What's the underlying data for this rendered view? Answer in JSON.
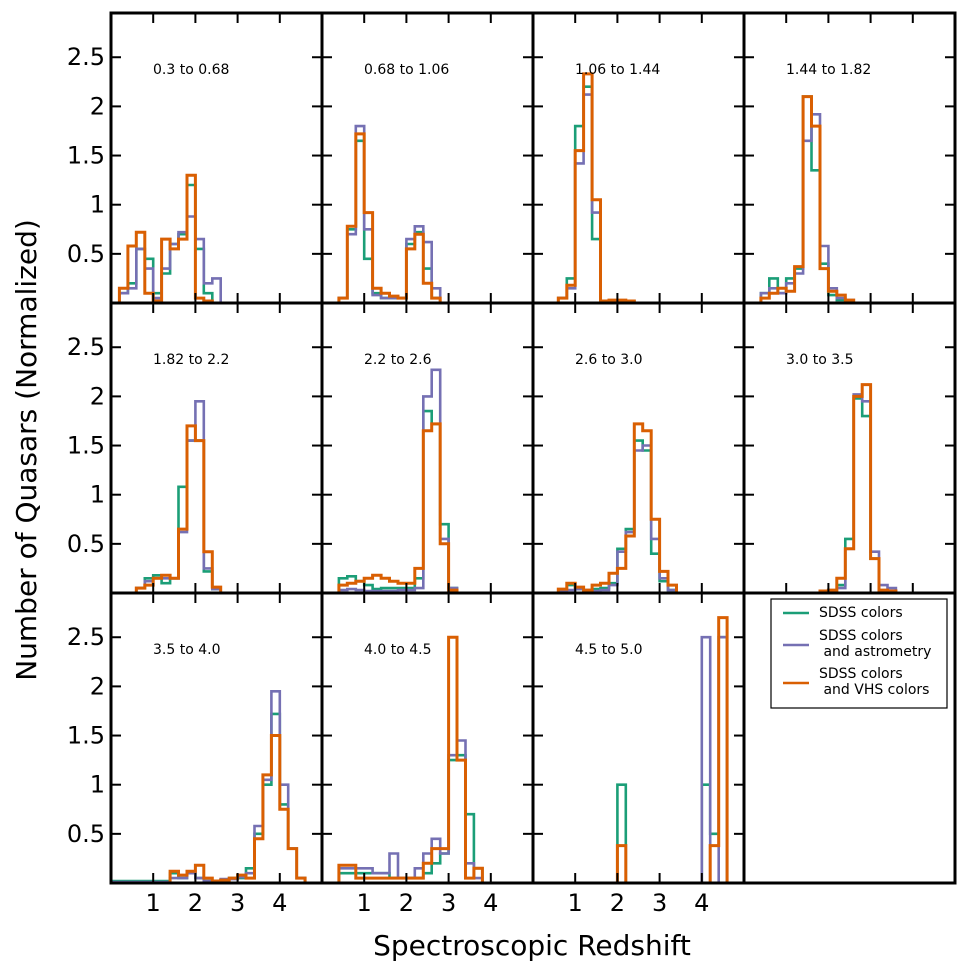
{
  "chart_data": {
    "type": "step-histogram-grid",
    "xlabel": "Spectroscopic Redshift",
    "ylabel": "Number of Quasars (Normalized)",
    "xlim": [
      0,
      5
    ],
    "ylim": [
      0,
      2.95
    ],
    "x_ticks": [
      1,
      2,
      3,
      4
    ],
    "x_tick_labels": [
      "1",
      "2",
      "3",
      "4"
    ],
    "y_ticks": [
      0.5,
      1,
      1.5,
      2,
      2.5
    ],
    "y_tick_labels": [
      "0.5",
      "1",
      "1.5",
      "2",
      "2.5"
    ],
    "series_colors": [
      "#1b9e77",
      "#7570b3",
      "#d95f02"
    ],
    "legend": {
      "placement": "bottom-right panel",
      "entries": [
        {
          "line1": "SDSS colors",
          "line2": ""
        },
        {
          "line1": "SDSS colors",
          "line2": " and astrometry"
        },
        {
          "line1": "SDSS colors",
          "line2": " and VHS colors"
        }
      ]
    },
    "panels": [
      {
        "label": "0.3  to 0.68",
        "series": [
          {
            "start": 0.2,
            "width": 0.2,
            "values": [
              0.1,
              0.2,
              0.55,
              0.45,
              0.1,
              0.3,
              0.6,
              0.7,
              1.2,
              0.55,
              0.1
            ]
          },
          {
            "start": 0.2,
            "width": 0.2,
            "values": [
              0.1,
              0.15,
              0.55,
              0.35,
              0.05,
              0.35,
              0.6,
              0.72,
              0.88,
              0.65,
              0.2,
              0.25
            ]
          },
          {
            "start": 0.2,
            "width": 0.2,
            "values": [
              0.15,
              0.58,
              0.72,
              0.1,
              0.02,
              0.65,
              0.55,
              0.65,
              1.3,
              0.05,
              0.02
            ]
          }
        ]
      },
      {
        "label": "0.68  to 1.06",
        "series": [
          {
            "start": 0.4,
            "width": 0.2,
            "values": [
              0.05,
              0.75,
              1.65,
              0.45,
              0.1,
              0.05,
              0.05,
              0.05,
              0.6,
              0.72,
              0.35,
              0.05
            ]
          },
          {
            "start": 0.4,
            "width": 0.2,
            "values": [
              0.05,
              0.7,
              1.8,
              0.75,
              0.08,
              0.05,
              0.05,
              0.05,
              0.65,
              0.78,
              0.62,
              0.15
            ]
          },
          {
            "start": 0.4,
            "width": 0.2,
            "values": [
              0.05,
              0.78,
              1.72,
              0.92,
              0.15,
              0.1,
              0.07,
              0.05,
              0.55,
              0.7,
              0.2,
              0.05
            ]
          }
        ]
      },
      {
        "label": "1.06  to 1.44",
        "series": [
          {
            "start": 0.6,
            "width": 0.2,
            "values": [
              0.05,
              0.25,
              1.8,
              2.2,
              0.65,
              0.02,
              0.02,
              0.02,
              0.02
            ]
          },
          {
            "start": 0.6,
            "width": 0.2,
            "values": [
              0.05,
              0.15,
              1.42,
              2.12,
              0.92,
              0.02,
              0.02,
              0.02,
              0.02
            ]
          },
          {
            "start": 0.6,
            "width": 0.2,
            "values": [
              0.05,
              0.18,
              1.55,
              2.33,
              1.05,
              0.02,
              0.03,
              0.03,
              0.02
            ]
          }
        ]
      },
      {
        "label": "1.44  to 1.82",
        "series": [
          {
            "start": 0.4,
            "width": 0.2,
            "values": [
              0.1,
              0.25,
              0.1,
              0.25,
              0.35,
              2.1,
              1.35,
              0.4,
              0.08,
              0.03,
              0.02
            ]
          },
          {
            "start": 0.4,
            "width": 0.2,
            "values": [
              0.1,
              0.15,
              0.1,
              0.2,
              0.3,
              1.65,
              1.92,
              0.58,
              0.15,
              0.05,
              0.03
            ]
          },
          {
            "start": 0.4,
            "width": 0.2,
            "values": [
              0.05,
              0.1,
              0.15,
              0.12,
              0.37,
              2.1,
              1.8,
              0.35,
              0.12,
              0.08,
              0.03
            ]
          }
        ]
      },
      {
        "label": "1.82  to 2.2",
        "series": [
          {
            "start": 0.6,
            "width": 0.2,
            "values": [
              0.05,
              0.15,
              0.18,
              0.1,
              0.15,
              1.08,
              1.55,
              1.55,
              0.22,
              0.04
            ]
          },
          {
            "start": 0.6,
            "width": 0.2,
            "values": [
              0.05,
              0.12,
              0.15,
              0.15,
              0.15,
              0.62,
              1.55,
              1.95,
              0.25,
              0.04
            ]
          },
          {
            "start": 0.6,
            "width": 0.2,
            "values": [
              0.05,
              0.08,
              0.15,
              0.18,
              0.15,
              0.65,
              1.7,
              1.55,
              0.42,
              0.06
            ]
          }
        ]
      },
      {
        "label": "2.2  to 2.6",
        "series": [
          {
            "start": 0.4,
            "width": 0.2,
            "values": [
              0.15,
              0.17,
              0.12,
              0.08,
              0.04,
              0.05,
              0.05,
              0.05,
              0.05,
              0.15,
              1.85,
              1.72,
              0.7,
              0.05
            ]
          },
          {
            "start": 0.4,
            "width": 0.2,
            "values": [
              0.03,
              0.04,
              0.03,
              0.02,
              0.02,
              0.02,
              0.02,
              0.03,
              0.03,
              0.05,
              2.0,
              2.27,
              0.55,
              0.05
            ]
          },
          {
            "start": 0.4,
            "width": 0.2,
            "values": [
              0.08,
              0.1,
              0.12,
              0.15,
              0.18,
              0.15,
              0.12,
              0.1,
              0.1,
              0.25,
              1.65,
              1.72,
              0.5,
              0.03
            ]
          }
        ]
      },
      {
        "label": "2.6  to 3.0",
        "series": [
          {
            "start": 0.6,
            "width": 0.2,
            "values": [
              0.03,
              0.08,
              0.04,
              0.02,
              0.04,
              0.05,
              0.1,
              0.45,
              0.65,
              1.55,
              1.45,
              0.4,
              0.12,
              0.03
            ]
          },
          {
            "start": 0.6,
            "width": 0.2,
            "values": [
              0.02,
              0.03,
              0.04,
              0.03,
              0.02,
              0.03,
              0.08,
              0.42,
              0.62,
              1.45,
              1.5,
              0.55,
              0.15,
              0.03
            ]
          },
          {
            "start": 0.6,
            "width": 0.2,
            "values": [
              0.04,
              0.1,
              0.06,
              0.03,
              0.08,
              0.1,
              0.2,
              0.25,
              0.58,
              1.72,
              1.65,
              0.75,
              0.22,
              0.08
            ]
          }
        ]
      },
      {
        "label": "3.0  to 3.5",
        "series": [
          {
            "start": 1.8,
            "width": 0.2,
            "values": [
              0.02,
              0.02,
              0.08,
              0.55,
              1.98,
              1.8,
              0.35,
              0.02,
              0.02
            ]
          },
          {
            "start": 1.8,
            "width": 0.2,
            "values": [
              0.02,
              0.02,
              0.05,
              0.45,
              2.02,
              1.95,
              0.42,
              0.08,
              0.05
            ]
          },
          {
            "start": 1.8,
            "width": 0.2,
            "values": [
              0.02,
              0.03,
              0.15,
              0.45,
              2.0,
              2.12,
              0.35,
              0.03,
              0.02
            ]
          }
        ]
      },
      {
        "label": "3.5  to 4.0",
        "series": [
          {
            "start": 0.0,
            "width": 0.2,
            "values": [
              0.02,
              0.02,
              0.02,
              0.02,
              0.02,
              0.02,
              0.02,
              0.1,
              0.05,
              0.1,
              0.05,
              0.02,
              0.02,
              0.03,
              0.05,
              0.05,
              0.15,
              0.5,
              1.0,
              1.72,
              0.8,
              0.35,
              0.05
            ]
          },
          {
            "start": 0.0,
            "width": 0.2,
            "values": [
              0.01,
              0.01,
              0.01,
              0.01,
              0.01,
              0.01,
              0.01,
              0.05,
              0.05,
              0.1,
              0.05,
              0.02,
              0.02,
              0.04,
              0.04,
              0.06,
              0.1,
              0.58,
              1.05,
              1.95,
              1.0,
              0.35,
              0.05
            ]
          },
          {
            "start": 0.0,
            "width": 0.2,
            "values": [
              0.0,
              0.0,
              0.0,
              0.0,
              0.0,
              0.0,
              0.0,
              0.12,
              0.08,
              0.12,
              0.18,
              0.05,
              0.02,
              0.03,
              0.05,
              0.08,
              0.05,
              0.45,
              1.1,
              1.5,
              0.75,
              0.35,
              0.05
            ]
          }
        ]
      },
      {
        "label": "4.0  to 4.5",
        "series": [
          {
            "start": 0.4,
            "width": 0.2,
            "values": [
              0.1,
              0.1,
              0.1,
              0.1,
              0.1,
              0.1,
              0.05,
              0.05,
              0.05,
              0.05,
              0.1,
              0.2,
              0.3,
              1.25,
              1.3,
              0.7,
              0.15
            ]
          },
          {
            "start": 0.4,
            "width": 0.2,
            "values": [
              0.15,
              0.15,
              0.15,
              0.15,
              0.1,
              0.1,
              0.3,
              0.05,
              0.05,
              0.15,
              0.3,
              0.45,
              0.3,
              1.3,
              1.45,
              0.2,
              0.05
            ]
          },
          {
            "start": 0.4,
            "width": 0.2,
            "values": [
              0.18,
              0.18,
              0.05,
              0.05,
              0.05,
              0.05,
              0.05,
              0.05,
              0.05,
              0.05,
              0.2,
              0.35,
              0.35,
              2.5,
              1.25,
              0.05,
              0.15
            ]
          }
        ]
      },
      {
        "label": "4.5  to 5.0",
        "series": [
          {
            "start": 1.6,
            "width": 0.2,
            "values": [
              0.0,
              0.0,
              1.0,
              0.0,
              0.0,
              0.0,
              0.0,
              0.0,
              0.0,
              0.0,
              0.0,
              0.0,
              1.0,
              0.5,
              2.5
            ]
          },
          {
            "start": 1.6,
            "width": 0.2,
            "values": [
              0.0,
              0.0,
              0.0,
              0.0,
              0.0,
              0.0,
              0.0,
              0.0,
              0.0,
              0.0,
              0.0,
              0.0,
              2.5,
              0.0,
              2.5
            ]
          },
          {
            "start": 1.6,
            "width": 0.2,
            "values": [
              0.0,
              0.0,
              0.38,
              0.0,
              0.0,
              0.0,
              0.0,
              0.0,
              0.0,
              0.0,
              0.0,
              0.0,
              0.0,
              0.38,
              2.7
            ]
          }
        ]
      }
    ]
  }
}
